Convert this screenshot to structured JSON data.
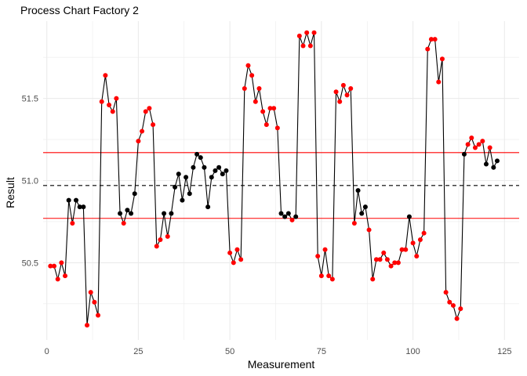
{
  "chart_data": {
    "type": "line",
    "title": "Process Chart Factory 2",
    "xlabel": "Measurement",
    "ylabel": "Result",
    "xlim": [
      -1,
      129
    ],
    "ylim": [
      50.03,
      51.97
    ],
    "x_ticks": [
      0,
      25,
      50,
      75,
      100,
      125
    ],
    "x_tick_labels": [
      "0",
      "25",
      "50",
      "75",
      "100",
      "125"
    ],
    "y_ticks": [
      50.5,
      51.0,
      51.5
    ],
    "y_tick_labels": [
      "50.5",
      "51.0",
      "51.5"
    ],
    "grid": true,
    "center_line": 50.97,
    "upper_limit": 51.17,
    "lower_limit": 50.77,
    "colors": {
      "line": "#000000",
      "point_in_control": "#000000",
      "point_out_of_control": "#ff0000",
      "limit_lines": "#ff0000",
      "center_line": "#000000",
      "grid": "#ebebeb"
    },
    "series": [
      {
        "values": [
          50.48,
          50.48,
          50.4,
          50.5,
          50.42,
          50.88,
          50.74,
          50.88,
          50.84,
          50.84,
          50.12,
          50.32,
          50.26,
          50.18,
          51.48,
          51.64,
          51.46,
          51.42,
          51.5,
          50.8,
          50.74,
          50.82,
          50.8,
          50.92,
          51.24,
          51.3,
          51.42,
          51.44,
          51.34,
          50.6,
          50.64,
          50.8,
          50.66,
          50.8,
          50.96,
          51.04,
          50.88,
          51.02,
          50.92,
          51.08,
          51.16,
          51.14,
          51.08,
          50.84,
          51.02,
          51.06,
          51.08,
          51.04,
          51.06,
          50.56,
          50.5,
          50.58,
          50.52,
          51.56,
          51.7,
          51.64,
          51.48,
          51.56,
          51.42,
          51.34,
          51.44,
          51.44,
          51.32,
          50.8,
          50.78,
          50.8,
          50.76,
          50.78,
          51.88,
          51.82,
          51.9,
          51.82,
          51.9,
          50.54,
          50.42,
          50.58,
          50.42,
          50.4,
          51.54,
          51.48,
          51.58,
          51.52,
          51.56,
          50.74,
          50.94,
          50.8,
          50.84,
          50.7,
          50.4,
          50.52,
          50.52,
          50.56,
          50.52,
          50.48,
          50.5,
          50.5,
          50.58,
          50.58,
          50.78,
          50.62,
          50.54,
          50.64,
          50.68,
          51.8,
          51.86,
          51.86,
          51.6,
          51.74,
          50.32,
          50.26,
          50.24,
          50.16,
          50.22,
          51.16,
          51.22,
          51.26,
          51.2,
          51.22,
          51.24,
          51.1,
          51.2,
          51.08,
          51.12
        ]
      }
    ]
  }
}
